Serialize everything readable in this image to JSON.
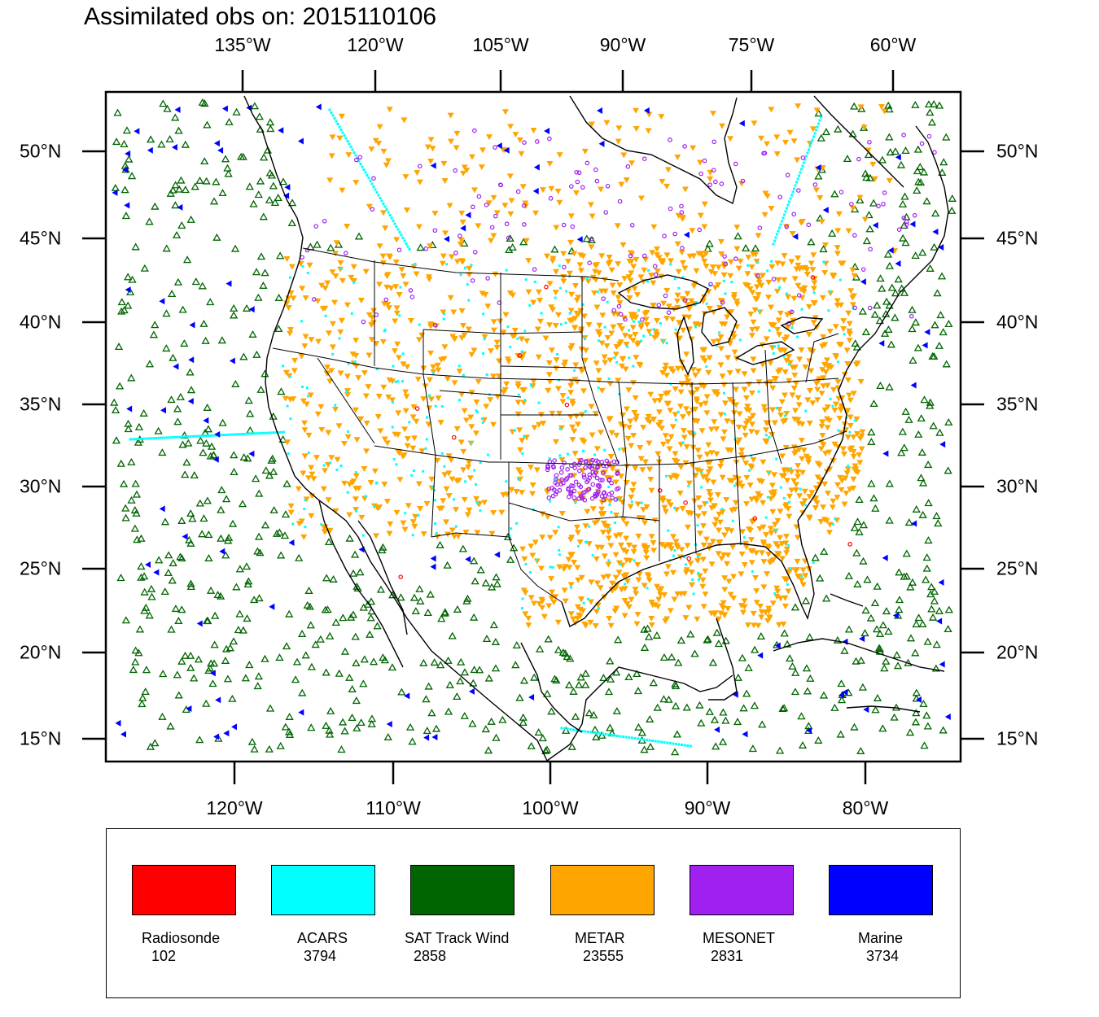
{
  "title": "Assimilated obs on: 2015110106",
  "top_lon_labels": [
    "135°W",
    "120°W",
    "105°W",
    "90°W",
    "75°W",
    "60°W"
  ],
  "bottom_lon_labels": [
    "120°W",
    "110°W",
    "100°W",
    "90°W",
    "80°W"
  ],
  "lat_labels": [
    "50°N",
    "45°N",
    "40°N",
    "35°N",
    "30°N",
    "25°N",
    "20°N",
    "15°N"
  ],
  "legend": [
    {
      "label": "Radiosonde",
      "count": "102",
      "color": "#ff0000"
    },
    {
      "label": "ACARS",
      "count": "3794",
      "color": "#00ffff"
    },
    {
      "label": "SAT Track Wind",
      "count": "2858",
      "color": "#006400"
    },
    {
      "label": "METAR",
      "count": "23555",
      "color": "#ffa500"
    },
    {
      "label": "MESONET",
      "count": "2831",
      "color": "#a020f0"
    },
    {
      "label": "Marine",
      "count": "3734",
      "color": "#0000ff"
    }
  ]
}
